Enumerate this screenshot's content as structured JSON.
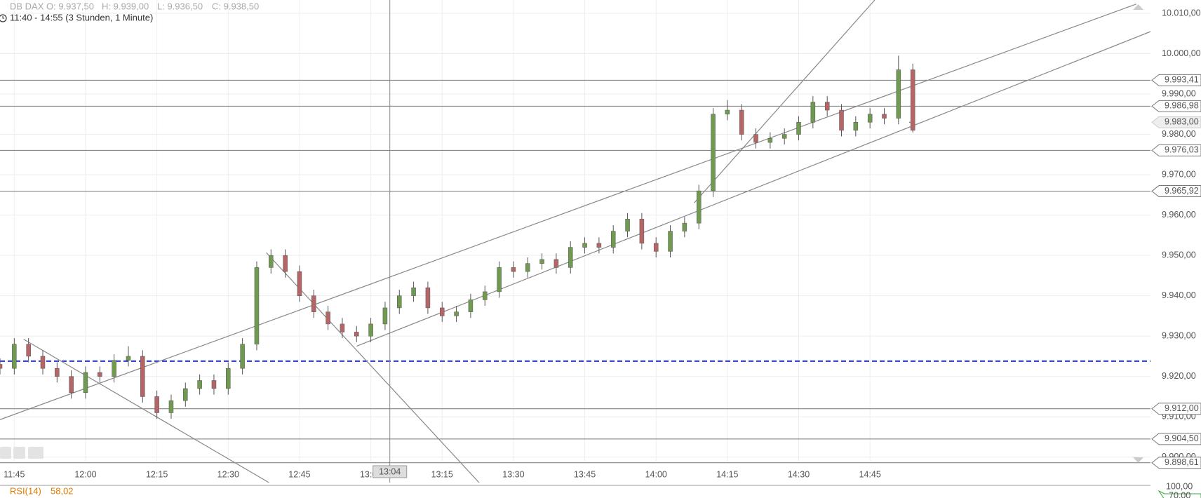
{
  "header": {
    "instrument": "DB DAX",
    "open": "O: 9.937,50",
    "high": "H: 9.939,00",
    "low": "L: 9.936,50",
    "close": "C: 9.938,50",
    "range": "11:40 - 14:55 (3 Stunden, 1 Minute)"
  },
  "chart_data": {
    "type": "candlestick",
    "x": [
      "11:42",
      "11:45",
      "11:48",
      "11:51",
      "11:54",
      "11:57",
      "12:00",
      "12:03",
      "12:06",
      "12:09",
      "12:12",
      "12:15",
      "12:18",
      "12:21",
      "12:24",
      "12:27",
      "12:30",
      "12:33",
      "12:36",
      "12:39",
      "12:42",
      "12:45",
      "12:48",
      "12:51",
      "12:54",
      "12:57",
      "13:00",
      "13:03",
      "13:06",
      "13:09",
      "13:12",
      "13:15",
      "13:18",
      "13:21",
      "13:24",
      "13:27",
      "13:30",
      "13:33",
      "13:36",
      "13:39",
      "13:42",
      "13:45",
      "13:48",
      "13:51",
      "13:54",
      "13:57",
      "14:00",
      "14:03",
      "14:06",
      "14:09",
      "14:12",
      "14:15",
      "14:18",
      "14:21",
      "14:24",
      "14:27",
      "14:30",
      "14:33",
      "14:36",
      "14:39",
      "14:42",
      "14:45",
      "14:48",
      "14:51",
      "14:54"
    ],
    "open": [
      9923,
      9922,
      9928,
      9925,
      9922,
      9920,
      9916,
      9921,
      9920,
      9924,
      9925,
      9915,
      9911,
      9914,
      9917,
      9919,
      9917,
      9922,
      9928,
      9947,
      9950,
      9946,
      9940,
      9936,
      9933,
      9931,
      9930,
      9933,
      9937,
      9940,
      9942,
      9937,
      9935,
      9936,
      9939,
      9941,
      9947,
      9946,
      9948,
      9949,
      9947,
      9952,
      9953,
      9952,
      9956,
      9959,
      9953,
      9951,
      9956,
      9958,
      9966,
      9985,
      9986,
      9980,
      9978,
      9979,
      9980,
      9983,
      9988,
      9986,
      9981,
      9983,
      9985,
      9984,
      9996
    ],
    "high": [
      9924.5,
      9929.5,
      9929.5,
      9926.5,
      9923.5,
      9921.5,
      9922.5,
      9922.5,
      9925.5,
      9927.5,
      9926.5,
      9916.5,
      9915.5,
      9918.5,
      9920.5,
      9920.5,
      9923.5,
      9929.5,
      9948.5,
      9951.5,
      9951.5,
      9947.5,
      9941.5,
      9937.5,
      9934.5,
      9932.5,
      9934.5,
      9938.5,
      9941.5,
      9943.5,
      9943.5,
      9938.5,
      9937.5,
      9940.5,
      9942.5,
      9948.5,
      9948.5,
      9949.5,
      9950.5,
      9950.5,
      9953.5,
      9954.5,
      9954.5,
      9957.5,
      9960.5,
      9960.5,
      9954.5,
      9957.5,
      9959.5,
      9967.5,
      9986.5,
      9988.5,
      9987.5,
      9981.5,
      9980.5,
      9981.5,
      9984.5,
      9989.5,
      9989.5,
      9987.5,
      9984.5,
      9986.5,
      9986.5,
      9999.5,
      9997.5
    ],
    "low": [
      9920.5,
      9920.5,
      9923.5,
      9920.5,
      9918.5,
      9914.5,
      9914.5,
      9918.5,
      9918.5,
      9922.5,
      9913.5,
      9909.5,
      9909.5,
      9912.5,
      9915.5,
      9915.5,
      9915.5,
      9920.5,
      9926.5,
      9945.5,
      9944.5,
      9938.5,
      9934.5,
      9931.5,
      9929.5,
      9928.5,
      9928.5,
      9931.5,
      9935.5,
      9938.5,
      9935.5,
      9933.5,
      9933.5,
      9934.5,
      9937.5,
      9939.5,
      9944.5,
      9944.5,
      9946.5,
      9945.5,
      9945.5,
      9950.5,
      9950.5,
      9950.5,
      9954.5,
      9951.5,
      9949.5,
      9949.5,
      9954.5,
      9956.5,
      9964.5,
      9983.5,
      9978.5,
      9976.5,
      9976.5,
      9977.5,
      9978.5,
      9981.5,
      9984.5,
      9979.5,
      9979.5,
      9981.5,
      9982.5,
      9982.5,
      9980.5
    ],
    "close": [
      9922,
      9928,
      9925,
      9922,
      9920,
      9916,
      9921,
      9920,
      9924,
      9925,
      9915,
      9911,
      9914,
      9917,
      9919,
      9917,
      9922,
      9928,
      9947,
      9950,
      9946,
      9940,
      9936,
      9933,
      9931,
      9930,
      9933,
      9937,
      9940,
      9942,
      9937,
      9935,
      9936,
      9939,
      9941,
      9947,
      9946,
      9948,
      9949,
      9947,
      9952,
      9953,
      9952,
      9956,
      9959,
      9953,
      9951,
      9956,
      9958,
      9966,
      9985,
      9986,
      9980,
      9978,
      9979,
      9980,
      9983,
      9988,
      9986,
      9981,
      9983,
      9985,
      9984,
      9996,
      9981
    ],
    "up_color": "#6f9a50",
    "down_color": "#b56565",
    "xlim": [
      "11:42",
      "15:44"
    ],
    "ylim": [
      9893.7,
      10013.3
    ],
    "xticks": [
      "11:45",
      "12:00",
      "12:15",
      "12:30",
      "12:45",
      "13:00",
      "13:15",
      "13:30",
      "13:45",
      "14:00",
      "14:15",
      "14:30",
      "14:45"
    ],
    "yticks": [
      {
        "value": 10010,
        "label": "10.010,00"
      },
      {
        "value": 10000,
        "label": "10.000,00"
      },
      {
        "value": 9990,
        "label": "9.990,00"
      },
      {
        "value": 9980,
        "label": "9.980,00"
      },
      {
        "value": 9970,
        "label": "9.970,00"
      },
      {
        "value": 9960,
        "label": "9.960,00"
      },
      {
        "value": 9950,
        "label": "9.950,00"
      },
      {
        "value": 9940,
        "label": "9.940,00"
      },
      {
        "value": 9930,
        "label": "9.930,00"
      },
      {
        "value": 9920,
        "label": "9.920,00"
      },
      {
        "value": 9910,
        "label": "9.910,00"
      },
      {
        "value": 9900,
        "label": "9.900,00"
      }
    ],
    "grid": true,
    "levels": [
      {
        "value": 9993.41,
        "label": "9.993,41"
      },
      {
        "value": 9986.98,
        "label": "9.986,98"
      },
      {
        "value": 9976.03,
        "label": "9.976,03"
      },
      {
        "value": 9965.92,
        "label": "9.965,92"
      },
      {
        "value": 9912.0,
        "label": "9.912,00"
      },
      {
        "value": 9904.5,
        "label": "9.904,50"
      },
      {
        "value": 9898.61,
        "label": "9.898,61"
      }
    ],
    "current_price": {
      "value": 9983.0,
      "label": "9.983,00"
    },
    "reference_line": {
      "value": 9923.8,
      "color": "#2233cc"
    },
    "trendlines": [
      {
        "x": [
          "11:42",
          "15:41"
        ],
        "y": [
          9909.3,
          10012.3
        ]
      },
      {
        "x": [
          "12:57",
          "15:55"
        ],
        "y": [
          9927.5,
          10010.6
        ]
      },
      {
        "x": [
          "14:08",
          "14:46"
        ],
        "y": [
          9963,
          10013.3
        ]
      },
      {
        "x": [
          "12:38",
          "13:23"
        ],
        "y": [
          9950.7,
          9893.4
        ]
      },
      {
        "x": [
          "11:47",
          "12:39"
        ],
        "y": [
          9929.2,
          9893.4
        ]
      }
    ],
    "crosshair": {
      "x": "13:04"
    }
  },
  "rsi": {
    "name": "RSI(14)",
    "value": "58,02",
    "ticks": [
      "100,00",
      "70,00"
    ]
  }
}
